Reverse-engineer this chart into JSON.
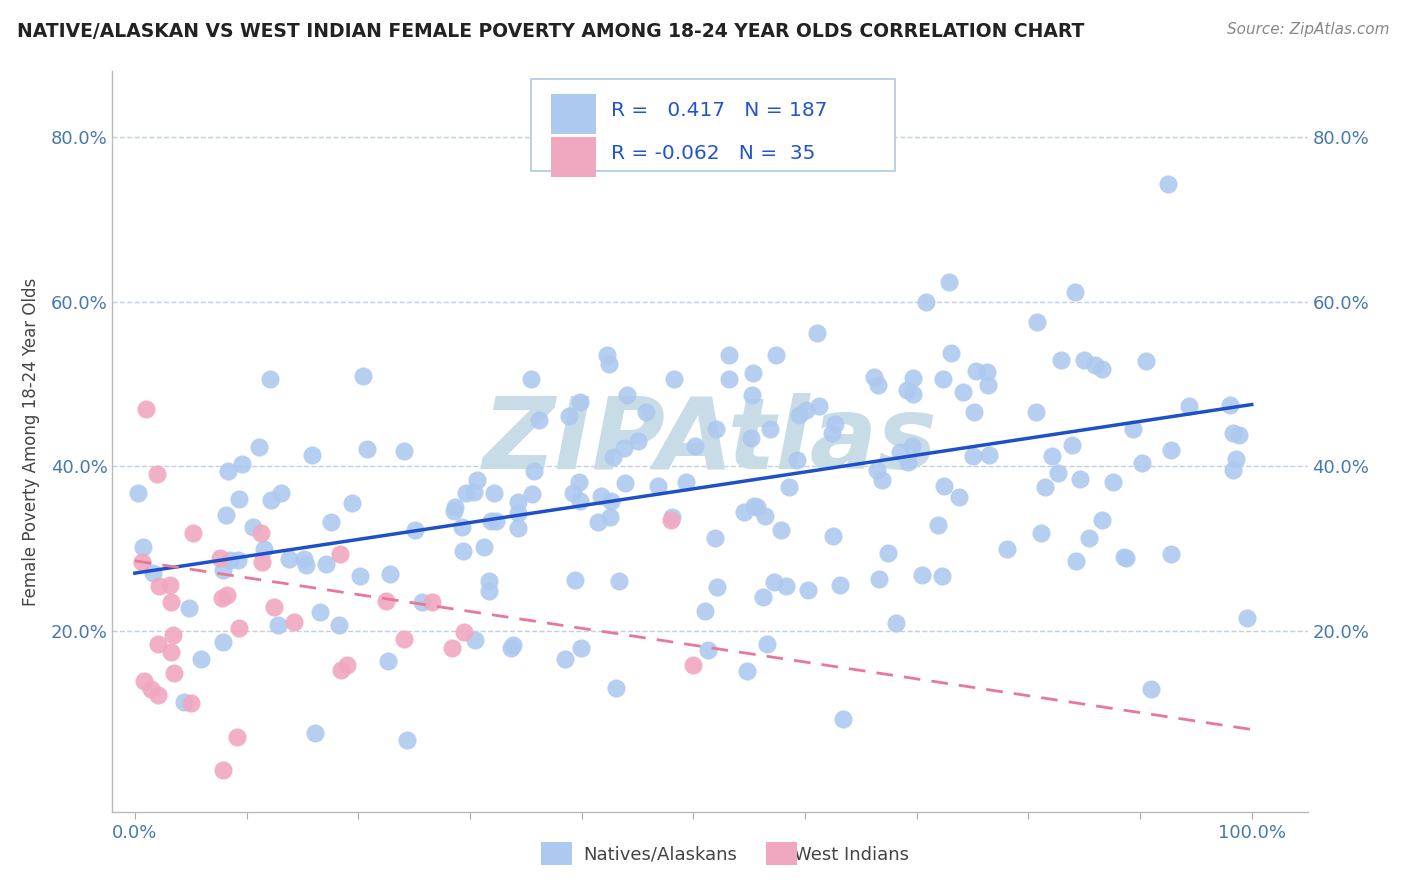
{
  "title": "NATIVE/ALASKAN VS WEST INDIAN FEMALE POVERTY AMONG 18-24 YEAR OLDS CORRELATION CHART",
  "source": "Source: ZipAtlas.com",
  "ylabel": "Female Poverty Among 18-24 Year Olds",
  "xlim": [
    -0.02,
    1.05
  ],
  "ylim": [
    -0.02,
    0.88
  ],
  "blue_R": 0.417,
  "blue_N": 187,
  "pink_R": -0.062,
  "pink_N": 35,
  "blue_color": "#aec9ef",
  "blue_line_color": "#1e50c8",
  "pink_color": "#f0a8c0",
  "pink_line_color": "#e87898",
  "legend_R_color": "#2255cc",
  "background_color": "#ffffff",
  "grid_color": "#c0d0e0",
  "watermark_color": "#c8dce8",
  "title_color": "#222222",
  "axis_color": "#4878b0",
  "tick_color": "#4878b0",
  "ylabel_color": "#444444",
  "source_color": "#888888",
  "blue_line_y0": 0.27,
  "blue_line_y1": 0.475,
  "pink_line_x0": 0.0,
  "pink_line_x1": 1.0,
  "pink_line_y0": 0.285,
  "pink_line_y1": 0.08
}
